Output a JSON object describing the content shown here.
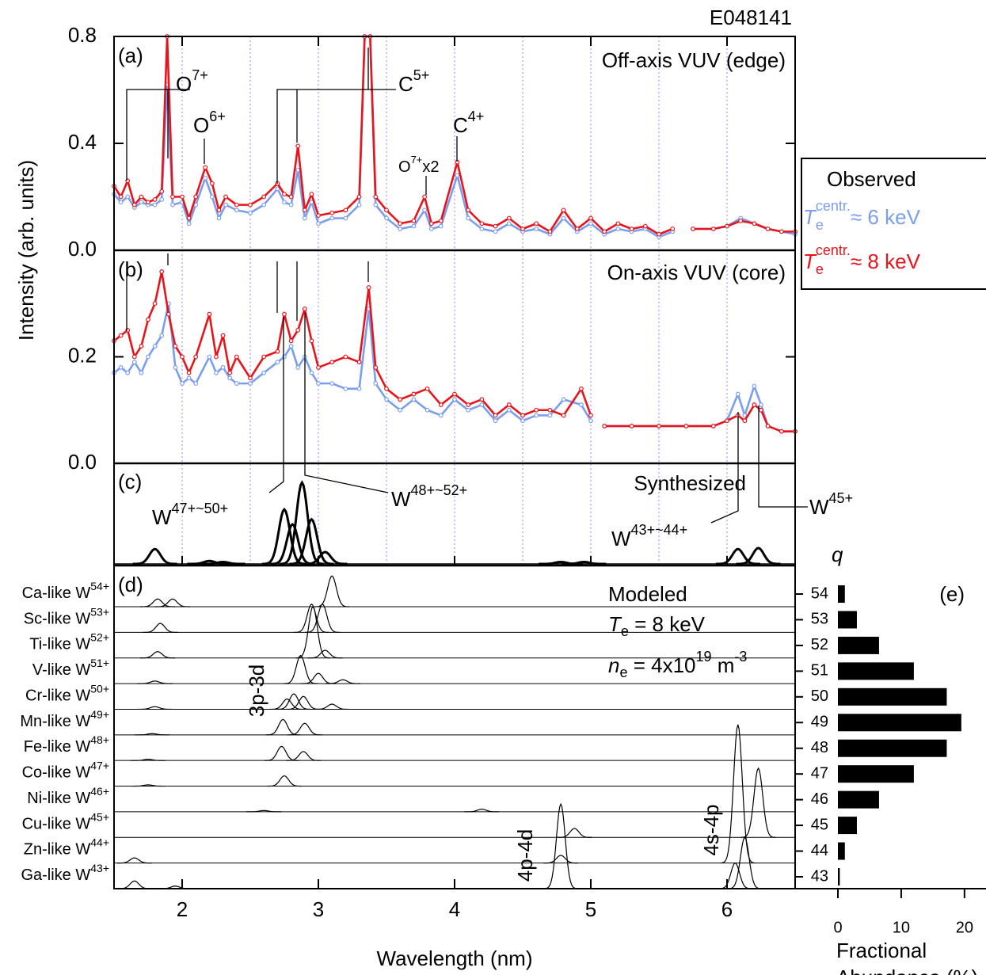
{
  "figure": {
    "id": "E048141",
    "ylabel": "Intensity (arb. units)",
    "xlabel": "Wavelength (nm)",
    "xlim": [
      1.5,
      6.5
    ],
    "xticks": [
      2,
      3,
      4,
      5,
      6
    ],
    "grid_x": [
      2,
      2.5,
      3,
      3.5,
      4,
      4.5,
      5,
      5.5,
      6
    ]
  },
  "legend": {
    "title": "Observed",
    "entries": [
      {
        "symbol": "T",
        "sub": "e",
        "sup": "centr.",
        "text": "≈ 6 keV"
      },
      {
        "symbol": "T",
        "sub": "e",
        "sup": "centr.",
        "text": "≈ 8 keV"
      }
    ]
  },
  "chart_data": [
    {
      "type": "line",
      "panel": "(a)",
      "title": "Off-axis VUV (edge)",
      "ylim": [
        0,
        0.8
      ],
      "yticks": [
        {
          "value": 0,
          "label": "0.0"
        },
        0.4,
        0.8
      ],
      "annotations": [
        {
          "base": "O",
          "sup": "7+"
        },
        {
          "base": "O",
          "sup": "6+"
        },
        {
          "base": "C",
          "sup": "5+"
        },
        {
          "base": "C",
          "sup": "4+"
        },
        {
          "base": "O",
          "sup": "7+",
          "text": "x2"
        }
      ],
      "x": [
        1.5,
        1.55,
        1.6,
        1.65,
        1.7,
        1.75,
        1.8,
        1.85,
        1.89,
        1.93,
        2.0,
        2.05,
        2.1,
        2.17,
        2.22,
        2.27,
        2.32,
        2.4,
        2.5,
        2.6,
        2.7,
        2.75,
        2.8,
        2.85,
        2.9,
        2.95,
        3.0,
        3.1,
        3.2,
        3.3,
        3.34,
        3.38,
        3.42,
        3.5,
        3.6,
        3.7,
        3.78,
        3.83,
        3.9,
        4.02,
        4.1,
        4.2,
        4.3,
        4.4,
        4.5,
        4.6,
        4.7,
        4.8,
        4.9,
        5.0,
        5.1,
        5.2,
        5.3,
        5.4,
        5.5,
        5.6,
        5.65,
        5.75,
        5.9,
        6.0,
        6.1,
        6.2,
        6.3,
        6.4,
        6.5
      ],
      "series": [
        {
          "color": "#7b9ff0",
          "values": [
            0.21,
            0.18,
            0.2,
            0.16,
            0.18,
            0.17,
            0.17,
            0.19,
            0.62,
            0.17,
            0.18,
            0.1,
            0.17,
            0.27,
            0.2,
            0.12,
            0.17,
            0.15,
            0.14,
            0.17,
            0.23,
            0.18,
            0.17,
            0.3,
            0.12,
            0.18,
            0.1,
            0.12,
            0.12,
            0.17,
            0.8,
            0.8,
            0.17,
            0.12,
            0.08,
            0.09,
            0.15,
            0.08,
            0.09,
            0.28,
            0.12,
            0.08,
            0.07,
            0.1,
            0.07,
            0.08,
            0.06,
            0.12,
            0.07,
            0.1,
            0.06,
            0.08,
            0.07,
            0.08,
            0.05,
            0.07,
            null,
            0.08,
            0.08,
            0.09,
            0.12,
            0.1,
            0.08,
            0.07,
            0.06
          ]
        },
        {
          "color": "#e8141b",
          "values": [
            0.24,
            0.2,
            0.26,
            0.17,
            0.2,
            0.18,
            0.19,
            0.22,
            0.8,
            0.2,
            0.2,
            0.12,
            0.2,
            0.31,
            0.25,
            0.15,
            0.2,
            0.17,
            0.17,
            0.2,
            0.25,
            0.21,
            0.2,
            0.39,
            0.15,
            0.21,
            0.13,
            0.14,
            0.15,
            0.2,
            0.8,
            0.8,
            0.2,
            0.15,
            0.1,
            0.11,
            0.2,
            0.1,
            0.11,
            0.33,
            0.15,
            0.1,
            0.09,
            0.12,
            0.08,
            0.1,
            0.07,
            0.15,
            0.08,
            0.12,
            0.07,
            0.1,
            0.08,
            0.09,
            0.06,
            0.08,
            null,
            0.08,
            0.08,
            0.09,
            0.11,
            0.1,
            0.08,
            0.07,
            0.07
          ]
        }
      ]
    },
    {
      "type": "line",
      "panel": "(b)",
      "title": "On-axis VUV (core)",
      "ylim": [
        0,
        0.4
      ],
      "yticks": [
        {
          "value": 0,
          "label": "0.0"
        },
        0.2
      ],
      "x": [
        1.5,
        1.55,
        1.6,
        1.65,
        1.7,
        1.75,
        1.8,
        1.85,
        1.9,
        1.95,
        2.0,
        2.05,
        2.1,
        2.2,
        2.25,
        2.3,
        2.35,
        2.4,
        2.5,
        2.6,
        2.7,
        2.75,
        2.8,
        2.85,
        2.9,
        2.95,
        3.0,
        3.1,
        3.2,
        3.3,
        3.37,
        3.42,
        3.5,
        3.6,
        3.7,
        3.8,
        3.9,
        4.0,
        4.1,
        4.2,
        4.3,
        4.4,
        4.5,
        4.6,
        4.7,
        4.8,
        4.93,
        5.0,
        5.05,
        5.1,
        5.3,
        5.5,
        5.7,
        5.9,
        6.0,
        6.08,
        6.13,
        6.2,
        6.25,
        6.3,
        6.4,
        6.5
      ],
      "series": [
        {
          "color": "#7b9ff0",
          "values": [
            0.17,
            0.18,
            0.17,
            0.19,
            0.17,
            0.2,
            0.22,
            0.24,
            0.3,
            0.18,
            0.15,
            0.16,
            0.15,
            0.2,
            0.17,
            0.18,
            0.16,
            0.15,
            0.15,
            0.17,
            0.19,
            0.2,
            0.22,
            0.18,
            0.2,
            0.17,
            0.15,
            0.15,
            0.14,
            0.14,
            0.29,
            0.15,
            0.12,
            0.1,
            0.12,
            0.1,
            0.09,
            0.12,
            0.1,
            0.11,
            0.08,
            0.1,
            0.08,
            0.09,
            0.09,
            0.12,
            0.11,
            0.08,
            null,
            0.07,
            0.07,
            0.07,
            0.07,
            0.07,
            0.08,
            0.13,
            0.09,
            0.145,
            0.11,
            0.07,
            0.06,
            0.06
          ]
        },
        {
          "color": "#e8141b",
          "values": [
            0.23,
            0.24,
            0.25,
            0.2,
            0.22,
            0.27,
            0.3,
            0.36,
            0.28,
            0.22,
            0.2,
            0.17,
            0.2,
            0.28,
            0.2,
            0.24,
            0.17,
            0.2,
            0.16,
            0.2,
            0.21,
            0.28,
            0.23,
            0.25,
            0.29,
            0.23,
            0.18,
            0.19,
            0.2,
            0.19,
            0.33,
            0.18,
            0.14,
            0.12,
            0.13,
            0.14,
            0.11,
            0.13,
            0.11,
            0.12,
            0.09,
            0.11,
            0.09,
            0.1,
            0.1,
            0.09,
            0.14,
            0.09,
            null,
            0.07,
            0.07,
            0.07,
            0.07,
            0.07,
            0.08,
            0.09,
            0.08,
            0.11,
            0.1,
            0.07,
            0.06,
            0.06
          ]
        }
      ]
    },
    {
      "type": "peaks",
      "panel": "(c)",
      "title": "Synthesized",
      "ylim": [
        0,
        1
      ],
      "color": "#000000",
      "annotations": [
        {
          "base": "W",
          "sup": "47+~50+"
        },
        {
          "base": "W",
          "sup": "48+~52+"
        },
        {
          "base": "W",
          "sup": "43+~44+"
        },
        {
          "base": "W",
          "sup": "45+"
        }
      ],
      "x": [
        1.8,
        2.2,
        2.3,
        2.75,
        2.81,
        2.88,
        2.95,
        3.05,
        4.78,
        4.95,
        6.08,
        6.23
      ],
      "values": [
        0.15,
        0.03,
        0.02,
        0.55,
        0.4,
        0.82,
        0.45,
        0.12,
        0.02,
        0.02,
        0.15,
        0.16
      ]
    },
    {
      "type": "stack",
      "panel": "(d)",
      "title": "Modeled",
      "color": "#000000",
      "params": [
        {
          "symbol": "T",
          "sub": "e",
          "text": " = 8 keV"
        },
        {
          "symbol": "n",
          "sub": "e",
          "text": " = 4x10",
          "sup": "19",
          "text2": " m",
          "sup2": "-3"
        }
      ],
      "annotations": [
        "3p-3d",
        "4p-4d",
        "4s-4p"
      ],
      "series": [
        {
          "name": "Ca-like W",
          "sup": "54+",
          "x": [
            1.82,
            1.93,
            3.1
          ],
          "values": [
            0.3,
            0.3,
            1.2
          ]
        },
        {
          "name": "Sc-like W",
          "sup": "53+",
          "x": [
            1.84,
            2.95,
            3.03
          ],
          "values": [
            0.35,
            1.1,
            1.1
          ]
        },
        {
          "name": "Ti-like W",
          "sup": "52+",
          "x": [
            1.82,
            2.96,
            3.05
          ],
          "values": [
            0.25,
            2.0,
            0.3
          ]
        },
        {
          "name": "V-like W",
          "sup": "51+",
          "x": [
            1.8,
            2.87,
            3.0,
            3.18
          ],
          "values": [
            0.1,
            1.1,
            0.4,
            0.15
          ]
        },
        {
          "name": "Cr-like W",
          "sup": "50+",
          "x": [
            1.8,
            2.77,
            2.82,
            2.89,
            3.1
          ],
          "values": [
            0.1,
            0.4,
            0.6,
            0.5,
            0.2
          ]
        },
        {
          "name": "Mn-like W",
          "sup": "49+",
          "x": [
            1.78,
            2.74,
            2.9
          ],
          "values": [
            0.05,
            0.6,
            0.45
          ]
        },
        {
          "name": "Fe-like W",
          "sup": "48+",
          "x": [
            1.75,
            2.73,
            2.89
          ],
          "values": [
            0.05,
            0.55,
            0.35
          ]
        },
        {
          "name": "Co-like W",
          "sup": "47+",
          "x": [
            1.75,
            2.75
          ],
          "values": [
            0.05,
            0.4
          ]
        },
        {
          "name": "Ni-like W",
          "sup": "46+",
          "x": [
            2.6,
            4.2
          ],
          "values": [
            0.05,
            0.1
          ]
        },
        {
          "name": "Cu-like W",
          "sup": "45+",
          "x": [
            4.88,
            6.23
          ],
          "values": [
            0.35,
            2.7
          ]
        },
        {
          "name": "Zn-like W",
          "sup": "44+",
          "x": [
            1.65,
            4.78,
            6.08
          ],
          "values": [
            0.2,
            0.3,
            5.4
          ]
        },
        {
          "name": "Ga-like W",
          "sup": "43+",
          "x": [
            1.65,
            1.95,
            4.78,
            6.06,
            6.13
          ],
          "values": [
            0.3,
            0.1,
            3.3,
            1.0,
            2.0
          ]
        }
      ]
    },
    {
      "type": "barh",
      "panel": "(e)",
      "ylabel": "q",
      "xlabel": [
        "Fractional",
        "Abundance (%)"
      ],
      "color": "#000000",
      "xlim": [
        0,
        23.4
      ],
      "xticks": [
        0,
        10,
        20
      ],
      "categories": [
        "54",
        "53",
        "52",
        "51",
        "50",
        "49",
        "48",
        "47",
        "46",
        "45",
        "44",
        "43"
      ],
      "values": [
        1.1,
        3,
        6.5,
        12,
        17.2,
        19.5,
        17.2,
        12,
        6.5,
        3,
        1.1,
        0.3
      ]
    }
  ]
}
